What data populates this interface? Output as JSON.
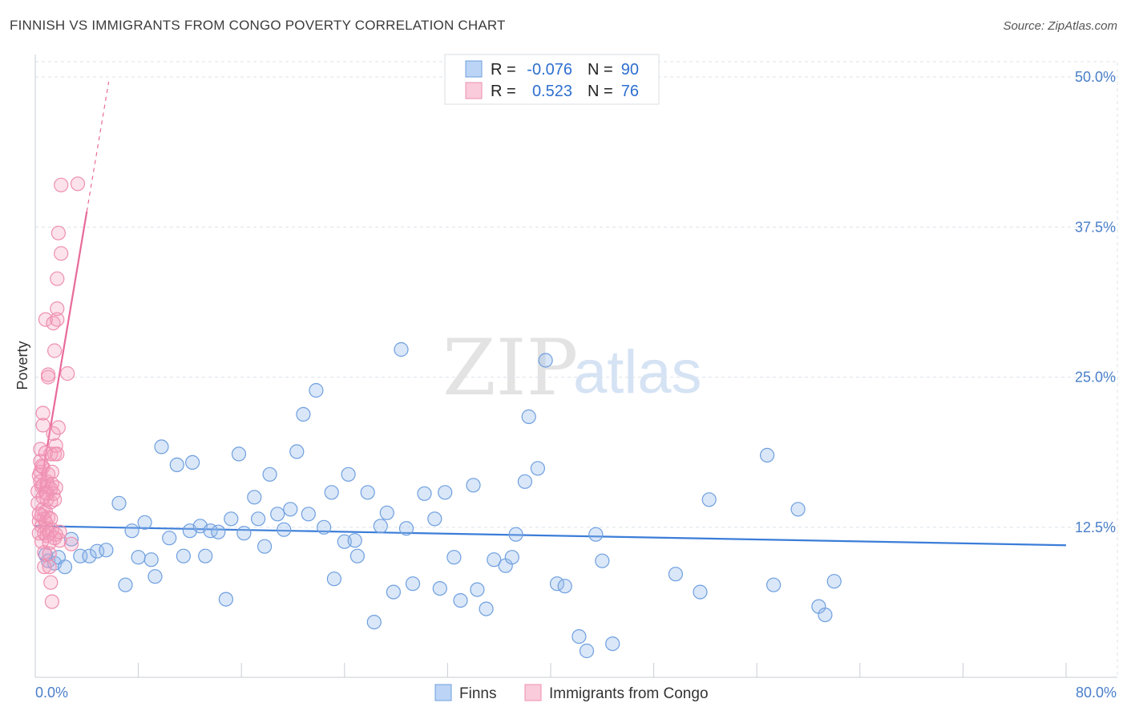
{
  "header": {
    "title": "FINNISH VS IMMIGRANTS FROM CONGO POVERTY CORRELATION CHART",
    "source": "Source: ZipAtlas.com"
  },
  "watermark": {
    "zip": "ZIP",
    "atlas": "atlas"
  },
  "colors": {
    "blue": "#3b7dd8",
    "pink": "#e8699a",
    "grid": "#dde3ea",
    "tick_label": "#4a7fc9"
  },
  "legend": {
    "r_label": "R = ",
    "n_label": "N = ",
    "finns": {
      "r": "-0.076",
      "n": "90"
    },
    "congo": {
      "r": "0.523",
      "n": "76"
    }
  },
  "chart_data": {
    "type": "scatter",
    "title": "FINNISH VS IMMIGRANTS FROM CONGO POVERTY CORRELATION CHART",
    "xlabel": "",
    "ylabel": "Poverty",
    "xlim": [
      0,
      80
    ],
    "ylim": [
      0,
      50
    ],
    "x_tick_labels": [
      "0.0%",
      "80.0%"
    ],
    "y_ticks": [
      12.5,
      25.0,
      37.5,
      50.0
    ],
    "y_tick_labels": [
      "12.5%",
      "25.0%",
      "37.5%",
      "50.0%"
    ],
    "legend_position": "top-center",
    "series": [
      {
        "name": "Finns",
        "r": -0.076,
        "n": 90,
        "trend": {
          "x": [
            0,
            80
          ],
          "y": [
            12.6,
            11.0
          ]
        },
        "points": [
          [
            0.8,
            10.2
          ],
          [
            1.0,
            9.7
          ],
          [
            1.5,
            9.5
          ],
          [
            1.8,
            10.0
          ],
          [
            2.3,
            9.2
          ],
          [
            2.8,
            11.5
          ],
          [
            3.5,
            10.1
          ],
          [
            4.2,
            10.1
          ],
          [
            4.8,
            10.5
          ],
          [
            5.5,
            10.6
          ],
          [
            6.5,
            14.5
          ],
          [
            7.0,
            7.7
          ],
          [
            7.5,
            12.2
          ],
          [
            8.0,
            10.0
          ],
          [
            8.5,
            12.9
          ],
          [
            9.0,
            9.8
          ],
          [
            9.3,
            8.4
          ],
          [
            9.8,
            19.2
          ],
          [
            10.4,
            11.6
          ],
          [
            11.0,
            17.7
          ],
          [
            11.5,
            10.1
          ],
          [
            12.0,
            12.2
          ],
          [
            12.2,
            17.9
          ],
          [
            12.8,
            12.6
          ],
          [
            13.2,
            10.1
          ],
          [
            13.6,
            12.2
          ],
          [
            14.2,
            12.1
          ],
          [
            14.8,
            6.5
          ],
          [
            15.2,
            13.2
          ],
          [
            15.8,
            18.6
          ],
          [
            16.2,
            12.0
          ],
          [
            17.0,
            15.0
          ],
          [
            17.3,
            13.2
          ],
          [
            17.8,
            10.9
          ],
          [
            18.2,
            16.9
          ],
          [
            18.8,
            13.6
          ],
          [
            19.3,
            12.3
          ],
          [
            19.8,
            14.0
          ],
          [
            20.3,
            18.8
          ],
          [
            20.8,
            21.9
          ],
          [
            21.2,
            13.6
          ],
          [
            21.8,
            23.9
          ],
          [
            22.4,
            12.5
          ],
          [
            23.0,
            15.4
          ],
          [
            23.2,
            8.2
          ],
          [
            24.0,
            11.3
          ],
          [
            24.3,
            16.9
          ],
          [
            24.8,
            11.4
          ],
          [
            25.0,
            10.1
          ],
          [
            25.8,
            15.4
          ],
          [
            26.3,
            4.6
          ],
          [
            26.8,
            12.6
          ],
          [
            27.3,
            13.7
          ],
          [
            27.8,
            7.1
          ],
          [
            28.4,
            27.3
          ],
          [
            28.8,
            12.4
          ],
          [
            29.3,
            7.8
          ],
          [
            30.2,
            15.3
          ],
          [
            31.0,
            13.2
          ],
          [
            31.4,
            7.4
          ],
          [
            31.8,
            15.4
          ],
          [
            32.5,
            10.0
          ],
          [
            33.0,
            6.4
          ],
          [
            34.0,
            16.0
          ],
          [
            34.3,
            7.3
          ],
          [
            35.0,
            5.7
          ],
          [
            35.6,
            9.8
          ],
          [
            36.5,
            9.3
          ],
          [
            37.0,
            10.0
          ],
          [
            37.3,
            11.9
          ],
          [
            38.0,
            16.3
          ],
          [
            38.3,
            21.7
          ],
          [
            39.0,
            17.4
          ],
          [
            39.6,
            26.4
          ],
          [
            40.5,
            7.8
          ],
          [
            41.1,
            7.6
          ],
          [
            42.2,
            3.4
          ],
          [
            42.8,
            2.2
          ],
          [
            43.5,
            11.9
          ],
          [
            44.0,
            9.7
          ],
          [
            44.8,
            2.8
          ],
          [
            49.7,
            8.6
          ],
          [
            51.6,
            7.1
          ],
          [
            52.3,
            14.8
          ],
          [
            56.8,
            18.5
          ],
          [
            57.3,
            7.7
          ],
          [
            59.2,
            14.0
          ],
          [
            60.8,
            5.9
          ],
          [
            61.3,
            5.2
          ],
          [
            62.0,
            8.0
          ]
        ]
      },
      {
        "name": "Immigrants from Congo",
        "r": 0.523,
        "n": 76,
        "trend": {
          "x": [
            0.3,
            4.0
          ],
          "y": [
            15.2,
            38.8
          ]
        },
        "trend_extension": {
          "x": [
            4.0,
            5.7
          ],
          "y": [
            38.8,
            49.6
          ]
        },
        "points": [
          [
            0.2,
            14.5
          ],
          [
            0.2,
            15.5
          ],
          [
            0.3,
            16.8
          ],
          [
            0.3,
            13.0
          ],
          [
            0.3,
            12.0
          ],
          [
            0.4,
            18.0
          ],
          [
            0.4,
            19.0
          ],
          [
            0.4,
            17.1
          ],
          [
            0.5,
            15.9
          ],
          [
            0.5,
            13.5
          ],
          [
            0.5,
            12.6
          ],
          [
            0.5,
            11.3
          ],
          [
            0.6,
            21.0
          ],
          [
            0.6,
            22.0
          ],
          [
            0.6,
            17.5
          ],
          [
            0.6,
            16.0
          ],
          [
            0.6,
            14.0
          ],
          [
            0.7,
            13.2
          ],
          [
            0.7,
            12.0
          ],
          [
            0.7,
            10.4
          ],
          [
            0.7,
            9.2
          ],
          [
            0.8,
            29.8
          ],
          [
            0.8,
            18.7
          ],
          [
            0.8,
            15.4
          ],
          [
            0.8,
            13.8
          ],
          [
            0.8,
            12.9
          ],
          [
            0.9,
            16.3
          ],
          [
            0.9,
            14.8
          ],
          [
            0.9,
            12.4
          ],
          [
            0.9,
            11.8
          ],
          [
            1.0,
            25.0
          ],
          [
            1.0,
            25.2
          ],
          [
            1.0,
            16.9
          ],
          [
            1.0,
            15.9
          ],
          [
            1.0,
            13.3
          ],
          [
            1.1,
            12.0
          ],
          [
            1.1,
            11.2
          ],
          [
            1.1,
            10.3
          ],
          [
            1.2,
            18.6
          ],
          [
            1.2,
            15.7
          ],
          [
            1.2,
            14.6
          ],
          [
            1.2,
            13.2
          ],
          [
            1.2,
            7.9
          ],
          [
            1.3,
            17.1
          ],
          [
            1.3,
            16.1
          ],
          [
            1.3,
            12.3
          ],
          [
            1.3,
            6.3
          ],
          [
            1.4,
            20.3
          ],
          [
            1.4,
            15.3
          ],
          [
            1.4,
            29.5
          ],
          [
            1.5,
            27.2
          ],
          [
            1.5,
            18.6
          ],
          [
            1.5,
            14.8
          ],
          [
            1.6,
            19.3
          ],
          [
            1.6,
            15.8
          ],
          [
            1.6,
            11.9
          ],
          [
            1.7,
            29.8
          ],
          [
            1.7,
            30.7
          ],
          [
            1.7,
            33.2
          ],
          [
            1.7,
            18.6
          ],
          [
            1.8,
            37.0
          ],
          [
            1.8,
            20.8
          ],
          [
            1.9,
            11.4
          ],
          [
            2.0,
            35.3
          ],
          [
            2.0,
            41.0
          ],
          [
            2.5,
            25.3
          ],
          [
            2.8,
            11.1
          ],
          [
            3.3,
            41.1
          ],
          [
            0.4,
            16.3
          ],
          [
            0.9,
            15.3
          ],
          [
            1.1,
            9.2
          ],
          [
            0.6,
            15.0
          ],
          [
            0.3,
            13.6
          ],
          [
            1.5,
            11.6
          ],
          [
            1.9,
            12.1
          ],
          [
            0.5,
            17.6
          ]
        ]
      }
    ]
  },
  "bottom_legend": {
    "finns_label": "Finns",
    "congo_label": "Immigrants from Congo"
  }
}
